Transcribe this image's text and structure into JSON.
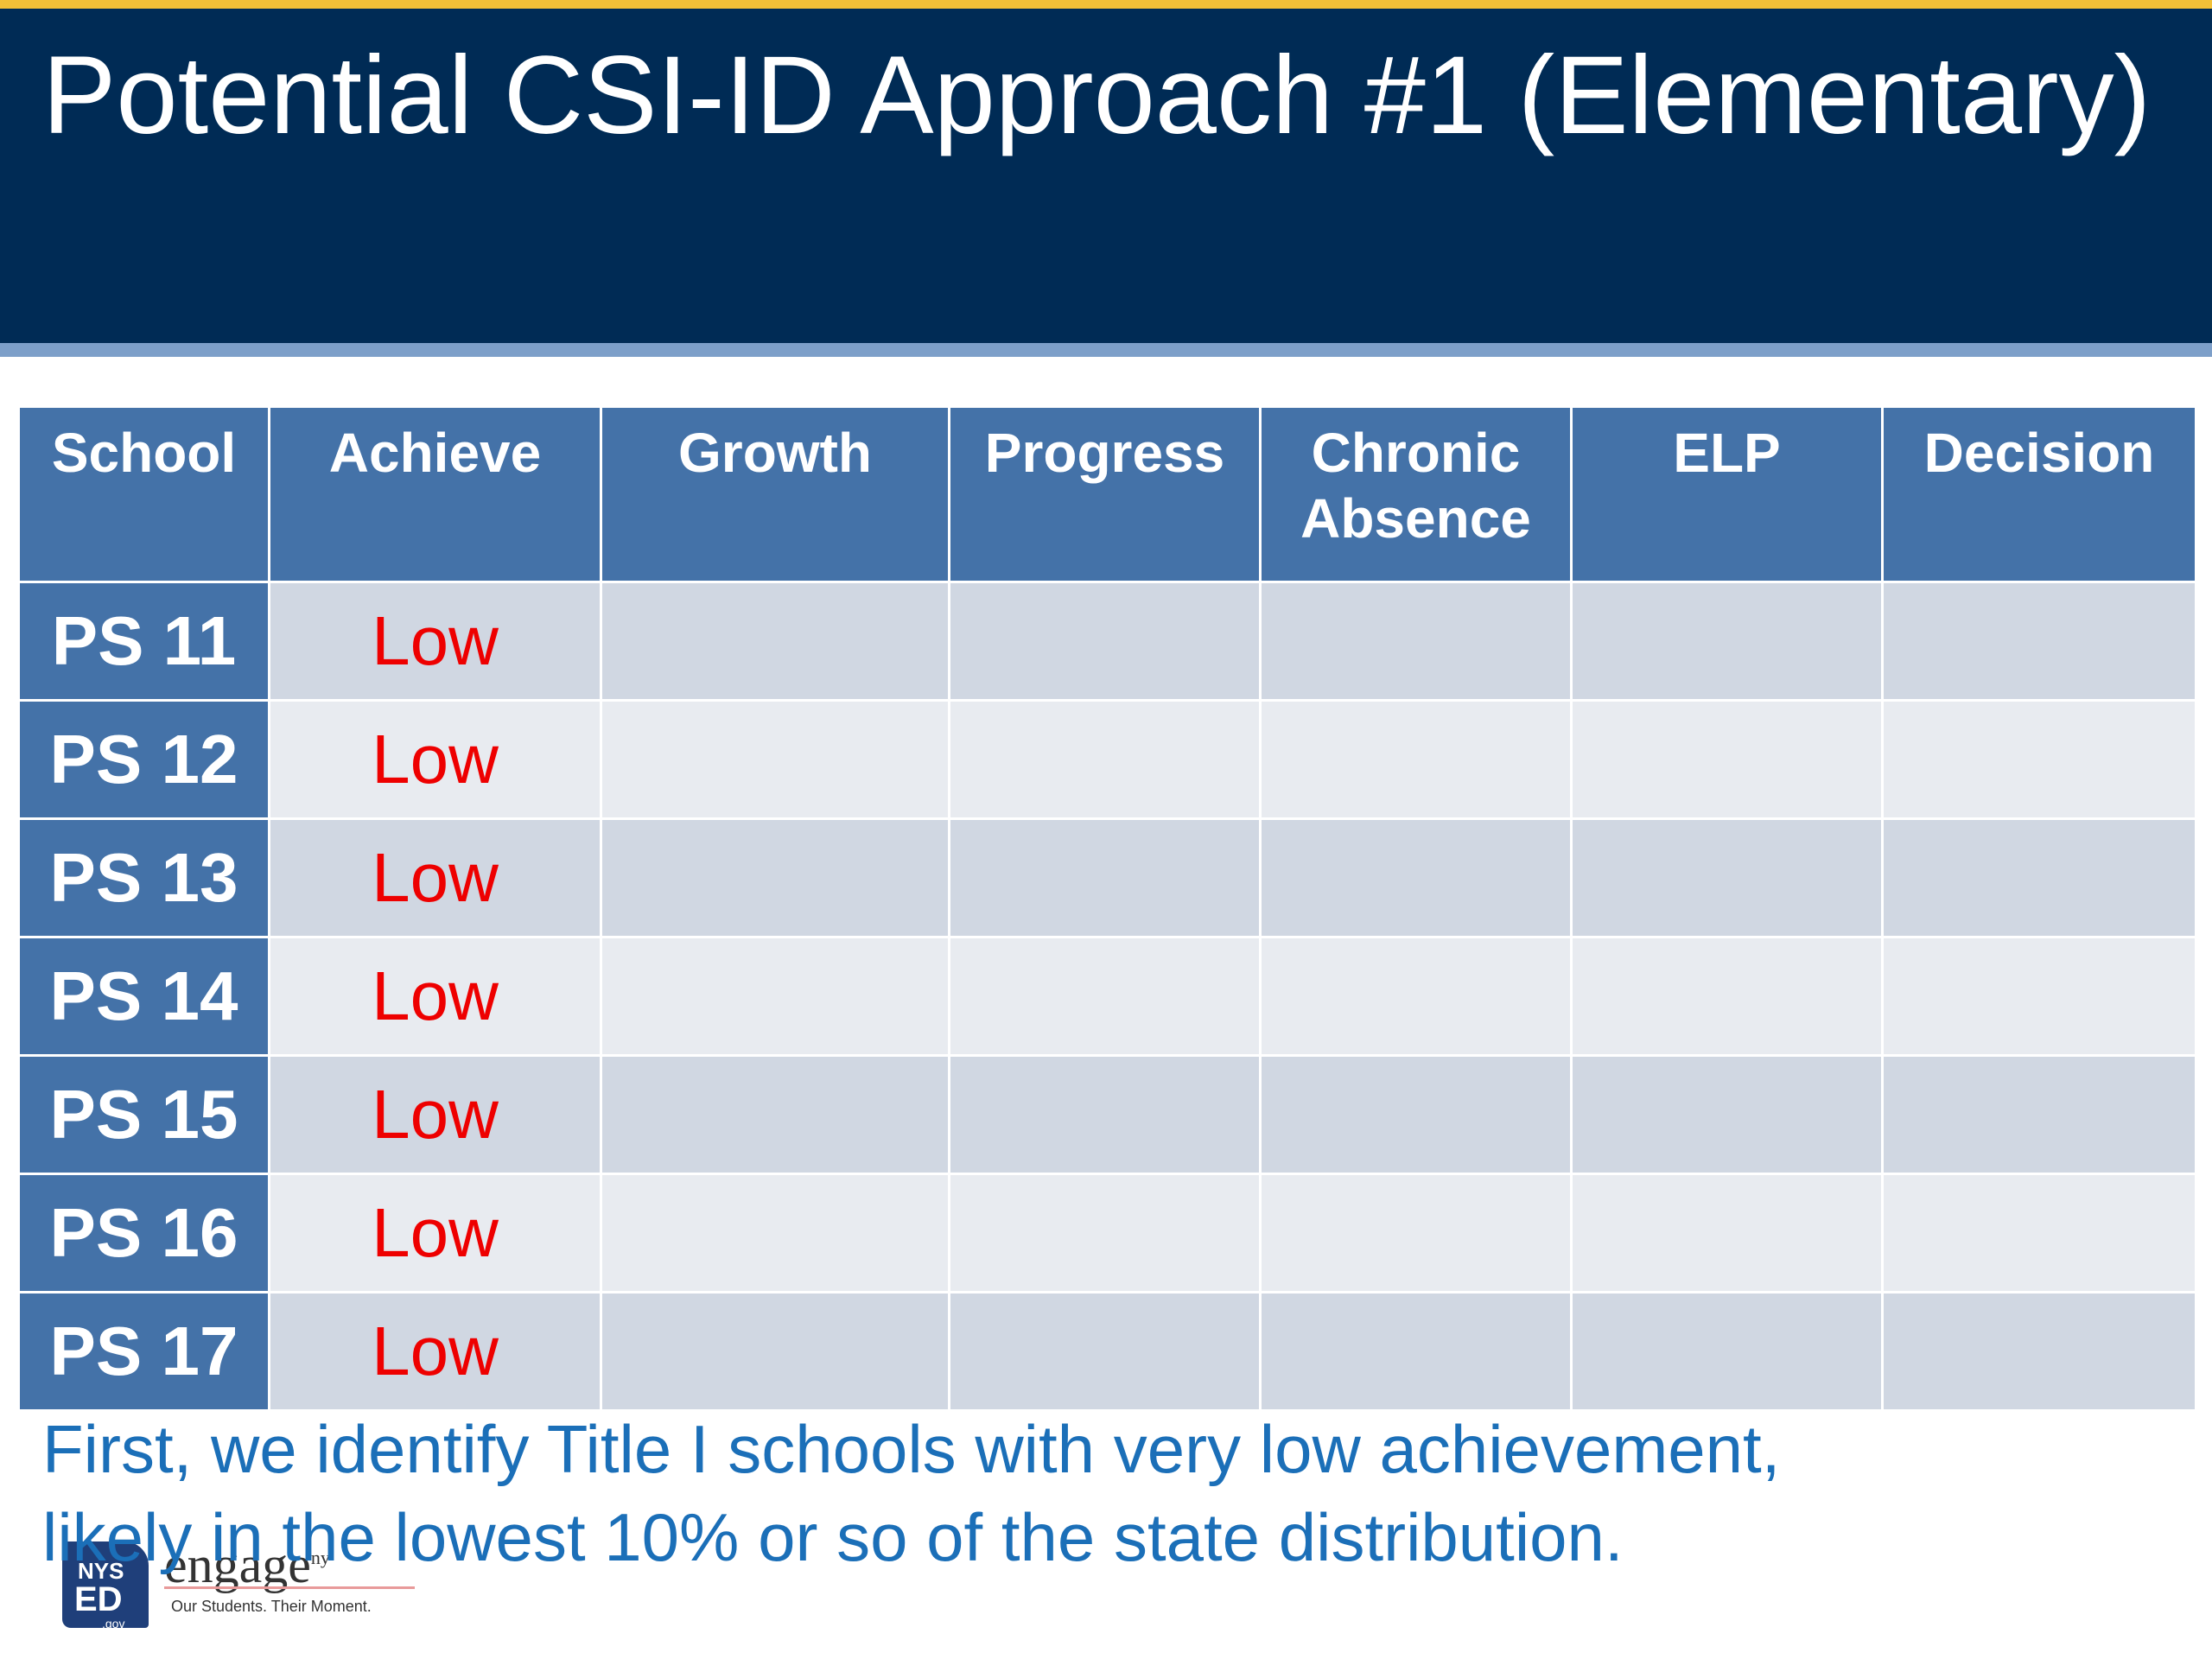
{
  "slide": {
    "title": "Potential CSI-ID Approach #1 (Elementary)",
    "note_line1": "First, we identify Title I schools with very low achievement,",
    "note_line2": "likely in the lowest 10% or so of the state distribution."
  },
  "table": {
    "headers": [
      "School",
      "Achieve",
      "Growth",
      "Progress",
      "Chronic Absence",
      "ELP",
      "Decision"
    ],
    "rows": [
      {
        "school": "PS 11",
        "achieve": "Low"
      },
      {
        "school": "PS 12",
        "achieve": "Low"
      },
      {
        "school": "PS 13",
        "achieve": "Low"
      },
      {
        "school": "PS 14",
        "achieve": "Low"
      },
      {
        "school": "PS 15",
        "achieve": "Low"
      },
      {
        "school": "PS 16",
        "achieve": "Low"
      },
      {
        "school": "PS 17",
        "achieve": "Low"
      }
    ]
  },
  "logo": {
    "state_abbr": "NYS",
    "ed": "ED",
    "domain": ".gov",
    "wordmark": "engage",
    "trademark": "ny",
    "tagline": "Our Students. Their Moment."
  },
  "colors": {
    "header_bg": "#002b55",
    "accent_stripe": "#f2c037",
    "table_header": "#4472a8",
    "low_text": "#ee0000",
    "note_text": "#1b6fb8"
  }
}
